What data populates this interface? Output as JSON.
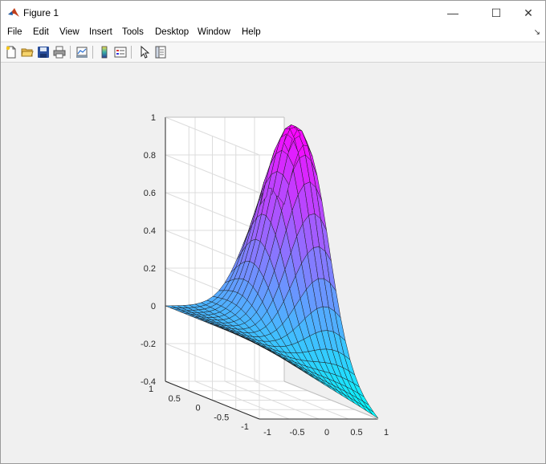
{
  "window": {
    "title": "Figure 1",
    "controls": {
      "minimize": "—",
      "maximize": "☐",
      "close": "✕"
    }
  },
  "menu": {
    "items": [
      "File",
      "Edit",
      "View",
      "Insert",
      "Tools",
      "Desktop",
      "Window",
      "Help"
    ],
    "dock_glyph": "↘"
  },
  "toolbar": {
    "buttons": [
      "new-figure",
      "open-file",
      "save-figure",
      "print-figure",
      "link-plot",
      "insert-colorbar",
      "insert-legend",
      "edit-plot",
      "open-property-inspector"
    ]
  },
  "colors": {
    "colormap": "cool",
    "colormap_start": "#00ffff",
    "colormap_end": "#ff00ff",
    "axes_background": "#ffffff",
    "figure_background": "#f0f0f0"
  },
  "chart_data": {
    "type": "surface",
    "title": "",
    "xlabel": "",
    "ylabel": "",
    "zlabel": "",
    "xlim": [
      -1,
      1
    ],
    "ylim": [
      -1,
      1
    ],
    "zlim": [
      -0.4,
      1
    ],
    "xticks": [
      "-1",
      "-0.5",
      "0",
      "0.5",
      "1"
    ],
    "yticks": [
      "-1",
      "-0.5",
      "0",
      "0.5",
      "1"
    ],
    "zticks": [
      "-0.4",
      "-0.2",
      "0",
      "0.2",
      "0.4",
      "0.6",
      "0.8",
      "1"
    ],
    "grid": true,
    "box": "open",
    "colormap": "cool",
    "x": [
      -1.0,
      -0.9,
      -0.8,
      -0.7,
      -0.6,
      -0.5,
      -0.4,
      -0.3,
      -0.2,
      -0.1,
      0.0,
      0.1,
      0.2,
      0.3,
      0.4,
      0.5,
      0.6,
      0.7,
      0.8,
      0.9,
      1.0
    ],
    "y": [
      -1.0,
      -0.9,
      -0.8,
      -0.7,
      -0.6,
      -0.5,
      -0.4,
      -0.3,
      -0.2,
      -0.1,
      0.0,
      0.1,
      0.2,
      0.3,
      0.4,
      0.5,
      0.6,
      0.7,
      0.8,
      0.9,
      1.0
    ],
    "z_description": "z(x,y) = -0.4 at the x=1,y=-1 corner, 0 across the flat plateau (x<0 region near y=1), with a smooth bell-shaped peak reaching about 0.95 near x=0.8, y=0.5",
    "z_model": {
      "plane": {
        "ax": -0.1,
        "ay": 0.1,
        "c": -0.2,
        "x_offset_factor": 0.1
      },
      "peak": {
        "amplitude": 1.1,
        "x0": 0.8,
        "y0": 0.5,
        "sigma": 0.45
      }
    }
  }
}
